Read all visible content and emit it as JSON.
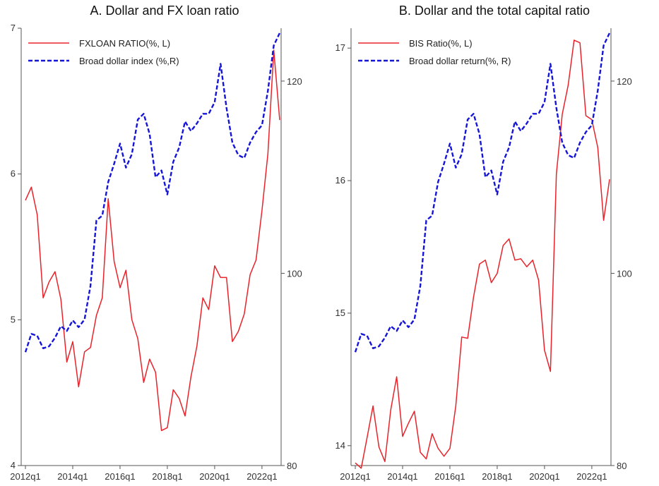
{
  "panels": [
    {
      "id": "A",
      "title": "A. Dollar and FX loan ratio",
      "chart_data": {
        "type": "line",
        "x_ticks": [
          "2012q1",
          "2014q1",
          "2016q1",
          "2018q1",
          "2020q1",
          "2022q1"
        ],
        "x_domain": [
          0,
          43
        ],
        "y_left": {
          "range": [
            4,
            7
          ],
          "ticks": [
            4,
            5,
            6,
            7
          ]
        },
        "y_right": {
          "range": [
            80,
            125.5
          ],
          "ticks": [
            80,
            100,
            120
          ]
        },
        "legend_position": "top-left",
        "grid": false,
        "series": [
          {
            "name": "FXLOAN RATIO(%, L)",
            "axis": "left",
            "color": "#e8232a",
            "dash": "solid",
            "values": [
              5.82,
              5.91,
              5.72,
              5.15,
              5.26,
              5.33,
              5.14,
              4.71,
              4.85,
              4.54,
              4.78,
              4.81,
              5.03,
              5.15,
              5.83,
              5.4,
              5.22,
              5.34,
              5.0,
              4.87,
              4.57,
              4.73,
              4.64,
              4.24,
              4.26,
              4.52,
              4.46,
              4.34,
              4.61,
              4.82,
              5.15,
              5.07,
              5.37,
              5.29,
              5.29,
              4.85,
              4.92,
              5.04,
              5.31,
              5.41,
              5.75,
              6.14,
              6.85,
              6.37
            ]
          },
          {
            "name": "Broad dollar index (%,R)",
            "axis": "right",
            "color": "#1515d8",
            "dash": "dashed",
            "values": [
              91.8,
              93.7,
              93.5,
              92.2,
              92.4,
              93.3,
              94.5,
              94.0,
              95.1,
              94.4,
              95.2,
              98.7,
              105.5,
              106.0,
              109.5,
              111.4,
              113.5,
              111.0,
              112.4,
              116.0,
              116.6,
              114.5,
              110.0,
              110.7,
              108.2,
              111.6,
              113.1,
              115.8,
              114.8,
              115.6,
              116.6,
              116.6,
              117.8,
              121.8,
              117.2,
              113.6,
              112.3,
              112.0,
              113.6,
              114.7,
              115.4,
              119.0,
              123.7,
              125.0
            ]
          }
        ]
      }
    },
    {
      "id": "B",
      "title": "B. Dollar and the total capital ratio",
      "chart_data": {
        "type": "line",
        "x_ticks": [
          "2012q1",
          "2014q1",
          "2016q1",
          "2018q1",
          "2020q1",
          "2022q1"
        ],
        "x_domain": [
          0,
          43
        ],
        "y_left": {
          "range": [
            13.85,
            17.15
          ],
          "ticks": [
            14,
            15,
            16,
            17
          ]
        },
        "y_right": {
          "range": [
            80,
            125.5
          ],
          "ticks": [
            80,
            100,
            120
          ]
        },
        "legend_position": "top-left",
        "grid": false,
        "series": [
          {
            "name": "BIS Ratio(%, L)",
            "axis": "left",
            "color": "#e8232a",
            "dash": "solid",
            "values": [
              13.87,
              13.83,
              14.06,
              14.3,
              13.99,
              13.88,
              14.27,
              14.52,
              14.07,
              14.17,
              14.26,
              13.95,
              13.9,
              14.09,
              13.98,
              13.92,
              13.98,
              14.3,
              14.82,
              14.81,
              15.12,
              15.37,
              15.4,
              15.23,
              15.3,
              15.51,
              15.56,
              15.4,
              15.41,
              15.35,
              15.4,
              15.25,
              14.72,
              14.56,
              16.05,
              16.5,
              16.72,
              17.06,
              17.04,
              16.49,
              16.46,
              16.25,
              15.7,
              16.01
            ]
          },
          {
            "name": "Broad dollar return(%, R)",
            "axis": "right",
            "color": "#1515d8",
            "dash": "dashed",
            "values": [
              91.8,
              93.7,
              93.5,
              92.2,
              92.4,
              93.3,
              94.5,
              94.0,
              95.1,
              94.4,
              95.2,
              98.7,
              105.5,
              106.0,
              109.5,
              111.4,
              113.5,
              111.0,
              112.4,
              116.0,
              116.6,
              114.5,
              110.0,
              110.7,
              108.2,
              111.6,
              113.1,
              115.8,
              114.8,
              115.6,
              116.6,
              116.6,
              117.8,
              121.8,
              117.2,
              113.6,
              112.3,
              112.0,
              113.6,
              114.7,
              115.4,
              119.0,
              123.7,
              125.0
            ]
          }
        ]
      }
    }
  ]
}
